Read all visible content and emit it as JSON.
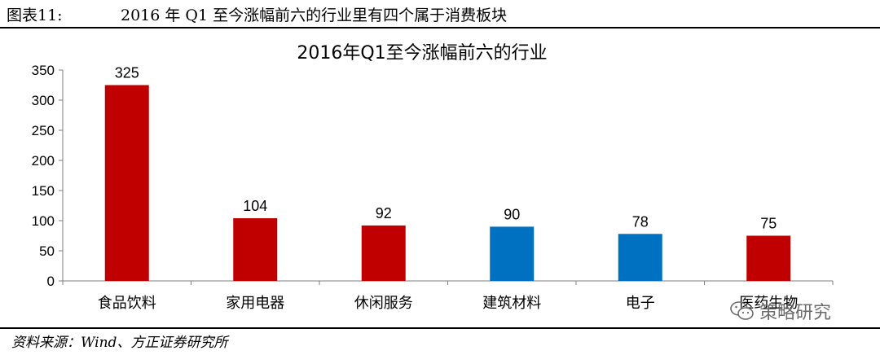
{
  "caption": {
    "label": "图表11:",
    "text": "2016 年 Q1 至今涨幅前六的行业里有四个属于消费板块"
  },
  "source": "资料来源：Wind、方正证券研究所",
  "watermark": {
    "text": "策略研究",
    "icon": "wechat-icon"
  },
  "chart_data": {
    "type": "bar",
    "title": "2016年Q1至今涨幅前六的行业",
    "xlabel": "",
    "ylabel": "",
    "ylim": [
      0,
      350
    ],
    "yticks": [
      0,
      50,
      100,
      150,
      200,
      250,
      300,
      350
    ],
    "categories": [
      "食品饮料",
      "家用电器",
      "休闲服务",
      "建筑材料",
      "电子",
      "医药生物"
    ],
    "values": [
      325,
      104,
      92,
      90,
      78,
      75
    ],
    "bar_colors": [
      "#C00000",
      "#C00000",
      "#C00000",
      "#0070C0",
      "#0070C0",
      "#C00000"
    ],
    "data_labels": [
      "325",
      "104",
      "92",
      "90",
      "78",
      "75"
    ],
    "grid": false,
    "legend": "none"
  }
}
